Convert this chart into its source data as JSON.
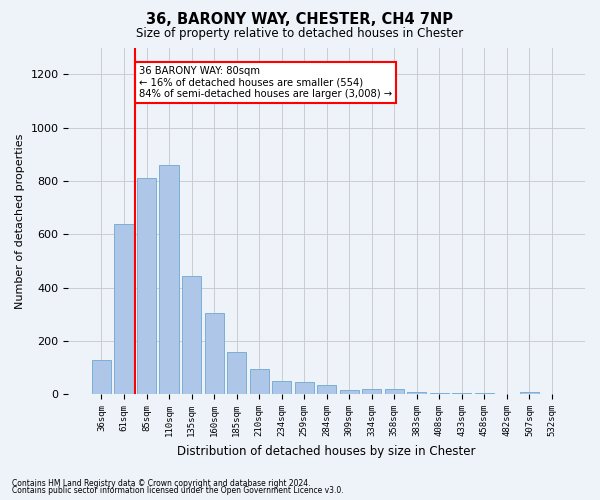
{
  "title": "36, BARONY WAY, CHESTER, CH4 7NP",
  "subtitle": "Size of property relative to detached houses in Chester",
  "xlabel": "Distribution of detached houses by size in Chester",
  "ylabel": "Number of detached properties",
  "categories": [
    "36sqm",
    "61sqm",
    "85sqm",
    "110sqm",
    "135sqm",
    "160sqm",
    "185sqm",
    "210sqm",
    "234sqm",
    "259sqm",
    "284sqm",
    "309sqm",
    "334sqm",
    "358sqm",
    "383sqm",
    "408sqm",
    "433sqm",
    "458sqm",
    "482sqm",
    "507sqm",
    "532sqm"
  ],
  "values": [
    130,
    640,
    810,
    860,
    445,
    305,
    160,
    95,
    50,
    45,
    35,
    15,
    20,
    18,
    10,
    5,
    5,
    3,
    2,
    10,
    2
  ],
  "bar_color": "#aec6e8",
  "bar_edgecolor": "#7aafd4",
  "grid_color": "#cccccc",
  "vline_x_index": 2,
  "vline_color": "red",
  "annotation_text": "36 BARONY WAY: 80sqm\n← 16% of detached houses are smaller (554)\n84% of semi-detached houses are larger (3,008) →",
  "annotation_box_color": "white",
  "annotation_box_edgecolor": "red",
  "footnote1": "Contains HM Land Registry data © Crown copyright and database right 2024.",
  "footnote2": "Contains public sector information licensed under the Open Government Licence v3.0.",
  "ylim": [
    0,
    1300
  ],
  "yticks": [
    0,
    200,
    400,
    600,
    800,
    1000,
    1200
  ],
  "bg_color": "#eef2f9",
  "plot_bg_color": "#eef2f9"
}
